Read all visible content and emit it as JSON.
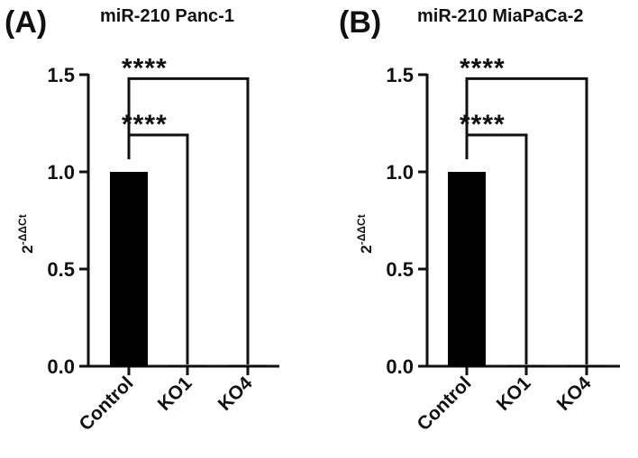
{
  "chart_data": [
    {
      "type": "bar",
      "panel": "(A)",
      "title": "miR-210 Panc-1",
      "ylabel": "2-ΔΔCt",
      "ylabel_base": "2",
      "ylabel_exp": "-ΔΔCt",
      "categories": [
        "Control",
        "KO1",
        "KO4"
      ],
      "values": [
        1.0,
        0.005,
        0.0
      ],
      "ylim": [
        0,
        1.5
      ],
      "yticks": [
        "0.0",
        "0.5",
        "1.0",
        "1.5"
      ],
      "ytick_values": [
        0,
        0.5,
        1.0,
        1.5
      ],
      "bar_color": "#000000",
      "significance": [
        {
          "from": "Control",
          "to": "KO1",
          "label": "****",
          "level": 1.19
        },
        {
          "from": "Control",
          "to": "KO4",
          "label": "****",
          "level": 1.48
        }
      ]
    },
    {
      "type": "bar",
      "panel": "(B)",
      "title": "miR-210 MiaPaCa-2",
      "ylabel": "2-ΔΔCt",
      "ylabel_base": "2",
      "ylabel_exp": "-ΔΔCt",
      "categories": [
        "Control",
        "KO1",
        "KO4"
      ],
      "values": [
        1.0,
        0.005,
        0.005
      ],
      "ylim": [
        0,
        1.5
      ],
      "yticks": [
        "0.0",
        "0.5",
        "1.0",
        "1.5"
      ],
      "ytick_values": [
        0,
        0.5,
        1.0,
        1.5
      ],
      "bar_color": "#000000",
      "significance": [
        {
          "from": "Control",
          "to": "KO1",
          "label": "****",
          "level": 1.19
        },
        {
          "from": "Control",
          "to": "KO4",
          "label": "****",
          "level": 1.48
        }
      ]
    }
  ]
}
